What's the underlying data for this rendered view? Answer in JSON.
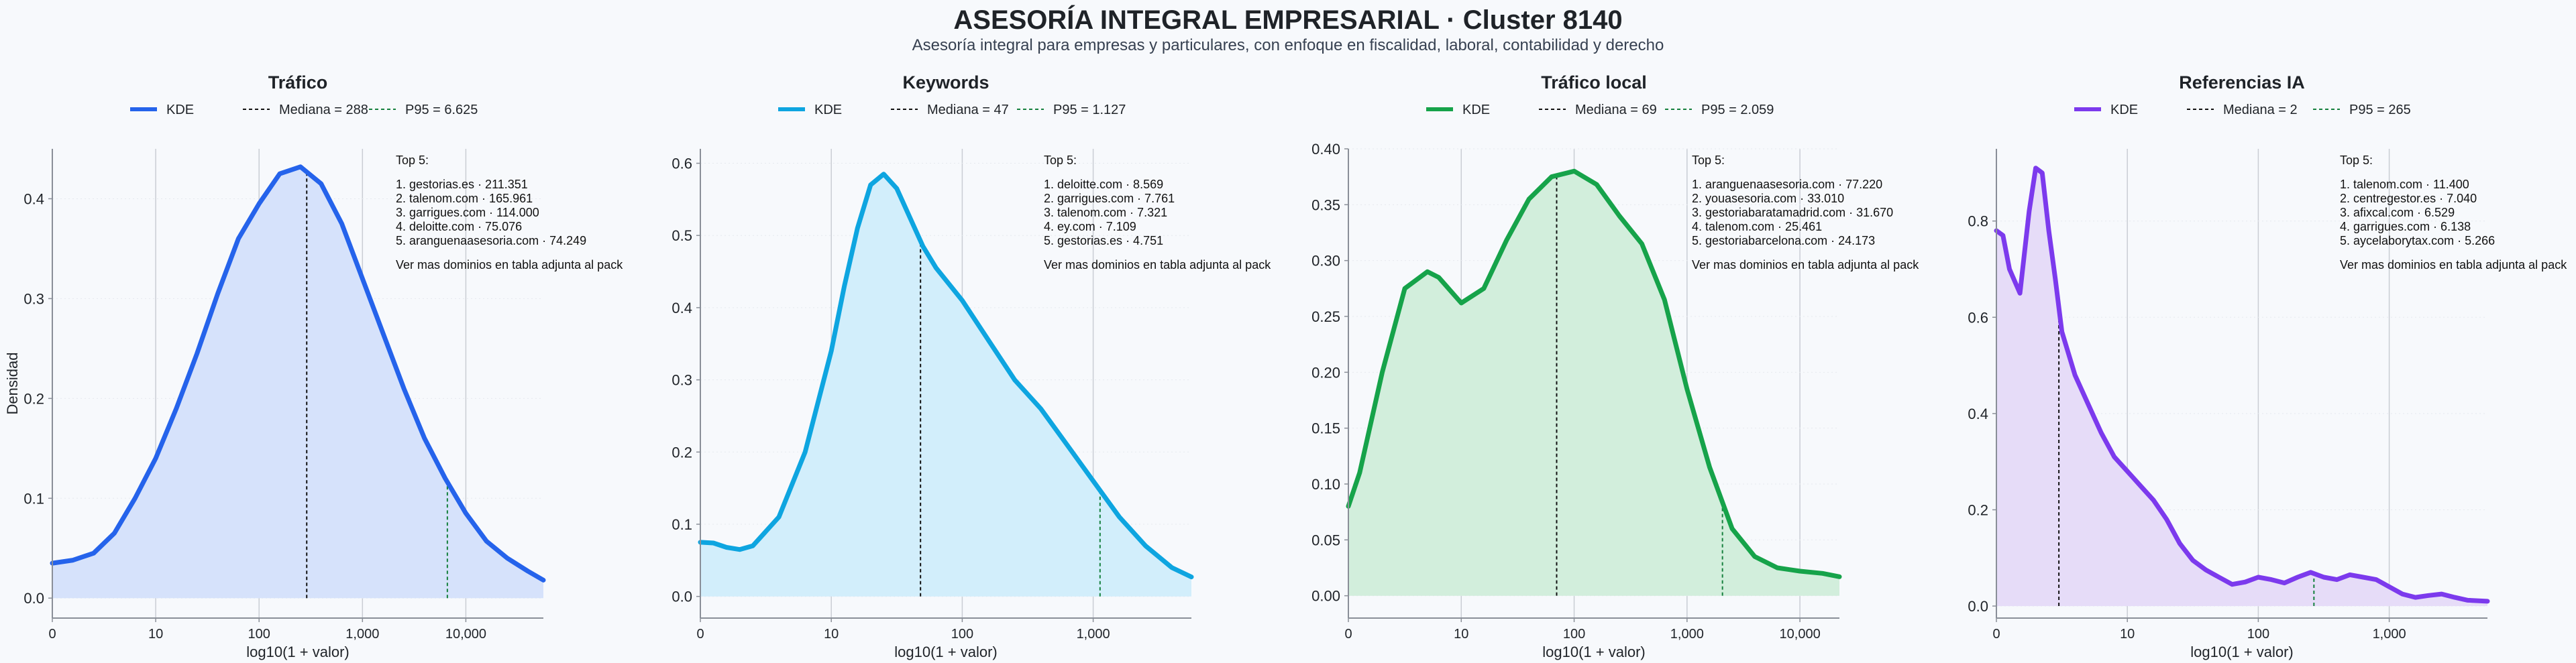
{
  "header": {
    "title": "ASESORÍA INTEGRAL EMPRESARIAL · Cluster 8140",
    "subtitle": "Asesoría integral para empresas y particulares, con enfoque en fiscalidad, laboral, contabilidad y derecho"
  },
  "chart_data": [
    {
      "type": "area",
      "title": "Tráfico",
      "xlabel": "log10(1 + valor)",
      "ylabel": "Densidad",
      "xscale": "log10(1+x)",
      "xlim": [
        0,
        4.75
      ],
      "ylim": [
        -0.02,
        0.45
      ],
      "x_ticks": [
        0,
        1,
        2,
        3,
        4
      ],
      "x_tick_labels": [
        "0",
        "10",
        "100",
        "1,000",
        "10,000"
      ],
      "y_ticks": [
        0.0,
        0.1,
        0.2,
        0.3,
        0.4
      ],
      "y_tick_labels": [
        "0.0",
        "0.1",
        "0.2",
        "0.3",
        "0.4"
      ],
      "color": "#2563eb",
      "fill_color": "#d6e2fb",
      "legend": [
        "KDE",
        "Mediana = 288",
        "P95 = 6.625"
      ],
      "median": 288,
      "p95": 6625,
      "series": [
        {
          "name": "KDE",
          "x": [
            0,
            0.2,
            0.4,
            0.6,
            0.8,
            1.0,
            1.2,
            1.4,
            1.6,
            1.8,
            2.0,
            2.2,
            2.4,
            2.6,
            2.8,
            3.0,
            3.2,
            3.4,
            3.6,
            3.8,
            4.0,
            4.2,
            4.4,
            4.6,
            4.75
          ],
          "y": [
            0.035,
            0.038,
            0.045,
            0.065,
            0.1,
            0.14,
            0.19,
            0.245,
            0.305,
            0.36,
            0.395,
            0.425,
            0.432,
            0.415,
            0.375,
            0.32,
            0.265,
            0.21,
            0.16,
            0.12,
            0.085,
            0.057,
            0.04,
            0.027,
            0.018
          ]
        }
      ],
      "annotation": [
        "Top 5:",
        "",
        "1. gestorias.es · 211.351",
        "2. talenom.com · 165.961",
        "3. garrigues.com · 114.000",
        "4. deloitte.com · 75.076",
        "5. aranguenaasesoria.com · 74.249",
        "",
        "Ver mas dominios en tabla adjunta al pack"
      ],
      "grid": "x"
    },
    {
      "type": "area",
      "title": "Keywords",
      "xlabel": "log10(1 + valor)",
      "ylabel": "",
      "xscale": "log10(1+x)",
      "xlim": [
        0,
        3.75
      ],
      "ylim": [
        -0.03,
        0.62
      ],
      "x_ticks": [
        0,
        1,
        2,
        3
      ],
      "x_tick_labels": [
        "0",
        "10",
        "100",
        "1,000"
      ],
      "y_ticks": [
        0.0,
        0.1,
        0.2,
        0.3,
        0.4,
        0.5,
        0.6
      ],
      "y_tick_labels": [
        "0.0",
        "0.1",
        "0.2",
        "0.3",
        "0.4",
        "0.5",
        "0.6"
      ],
      "color": "#0ea5e0",
      "fill_color": "#d2eefb",
      "legend": [
        "KDE",
        "Mediana = 47",
        "P95 = 1.127"
      ],
      "median": 47,
      "p95": 1127,
      "series": [
        {
          "name": "KDE",
          "x": [
            0,
            0.1,
            0.2,
            0.3,
            0.4,
            0.6,
            0.8,
            1.0,
            1.1,
            1.2,
            1.3,
            1.4,
            1.5,
            1.6,
            1.7,
            1.8,
            2.0,
            2.2,
            2.4,
            2.6,
            2.8,
            3.0,
            3.2,
            3.4,
            3.6,
            3.75
          ],
          "y": [
            0.075,
            0.074,
            0.068,
            0.065,
            0.07,
            0.11,
            0.2,
            0.34,
            0.43,
            0.51,
            0.57,
            0.585,
            0.565,
            0.525,
            0.485,
            0.455,
            0.41,
            0.355,
            0.3,
            0.26,
            0.21,
            0.16,
            0.11,
            0.07,
            0.04,
            0.027
          ]
        }
      ],
      "annotation": [
        "Top 5:",
        "",
        "1. deloitte.com · 8.569",
        "2. garrigues.com · 7.761",
        "3. talenom.com · 7.321",
        "4. ey.com · 7.109",
        "5. gestorias.es · 4.751",
        "",
        "Ver mas dominios en tabla adjunta al pack"
      ],
      "grid": "x"
    },
    {
      "type": "area",
      "title": "Tráfico local",
      "xlabel": "log10(1 + valor)",
      "ylabel": "",
      "xscale": "log10(1+x)",
      "xlim": [
        0,
        4.35
      ],
      "ylim": [
        -0.02,
        0.4
      ],
      "x_ticks": [
        0,
        1,
        2,
        3,
        4
      ],
      "x_tick_labels": [
        "0",
        "10",
        "100",
        "1,000",
        "10,000"
      ],
      "y_ticks": [
        0.0,
        0.05,
        0.1,
        0.15,
        0.2,
        0.25,
        0.3,
        0.35,
        0.4
      ],
      "y_tick_labels": [
        "0.00",
        "0.05",
        "0.10",
        "0.15",
        "0.20",
        "0.25",
        "0.30",
        "0.35",
        "0.40"
      ],
      "color": "#16a34a",
      "fill_color": "#d2eedc",
      "legend": [
        "KDE",
        "Mediana = 69",
        "P95 = 2.059"
      ],
      "median": 69,
      "p95": 2059,
      "series": [
        {
          "name": "KDE",
          "x": [
            0,
            0.1,
            0.3,
            0.5,
            0.7,
            0.8,
            1.0,
            1.2,
            1.4,
            1.6,
            1.8,
            2.0,
            2.2,
            2.4,
            2.6,
            2.8,
            3.0,
            3.2,
            3.4,
            3.6,
            3.8,
            4.0,
            4.2,
            4.35
          ],
          "y": [
            0.08,
            0.11,
            0.2,
            0.275,
            0.29,
            0.285,
            0.262,
            0.275,
            0.318,
            0.355,
            0.375,
            0.38,
            0.368,
            0.34,
            0.315,
            0.265,
            0.185,
            0.115,
            0.06,
            0.035,
            0.025,
            0.022,
            0.02,
            0.017
          ]
        }
      ],
      "annotation": [
        "Top 5:",
        "",
        "1. aranguenaasesoria.com · 77.220",
        "2. youasesoria.com · 33.010",
        "3. gestoriabaratamadrid.com · 31.670",
        "4. talenom.com · 25.461",
        "5. gestoriabarcelona.com · 24.173",
        "",
        "Ver mas dominios en tabla adjunta al pack"
      ],
      "grid": "x"
    },
    {
      "type": "area",
      "title": "Referencias IA",
      "xlabel": "log10(1 + valor)",
      "ylabel": "",
      "xscale": "log10(1+x)",
      "xlim": [
        0,
        3.75
      ],
      "ylim": [
        -0.025,
        0.95
      ],
      "x_ticks": [
        0,
        1,
        2,
        3
      ],
      "x_tick_labels": [
        "0",
        "10",
        "100",
        "1,000"
      ],
      "y_ticks": [
        0.0,
        0.2,
        0.4,
        0.6,
        0.8
      ],
      "y_tick_labels": [
        "0.0",
        "0.2",
        "0.4",
        "0.6",
        "0.8"
      ],
      "color": "#7c3aed",
      "fill_color": "#e6dcf8",
      "legend": [
        "KDE",
        "Mediana = 2",
        "P95 = 265"
      ],
      "median": 2,
      "p95": 265,
      "series": [
        {
          "name": "KDE",
          "x": [
            0,
            0.05,
            0.1,
            0.18,
            0.25,
            0.3,
            0.35,
            0.4,
            0.45,
            0.5,
            0.6,
            0.7,
            0.8,
            0.9,
            1.0,
            1.1,
            1.2,
            1.3,
            1.4,
            1.5,
            1.6,
            1.7,
            1.8,
            1.9,
            2.0,
            2.1,
            2.2,
            2.3,
            2.4,
            2.5,
            2.6,
            2.7,
            2.8,
            2.9,
            3.0,
            3.1,
            3.2,
            3.3,
            3.4,
            3.5,
            3.6,
            3.75
          ],
          "y": [
            0.78,
            0.77,
            0.7,
            0.65,
            0.82,
            0.91,
            0.9,
            0.78,
            0.68,
            0.57,
            0.48,
            0.42,
            0.36,
            0.31,
            0.28,
            0.25,
            0.22,
            0.18,
            0.13,
            0.095,
            0.075,
            0.06,
            0.045,
            0.05,
            0.06,
            0.055,
            0.048,
            0.06,
            0.07,
            0.06,
            0.055,
            0.065,
            0.06,
            0.055,
            0.04,
            0.025,
            0.018,
            0.022,
            0.025,
            0.018,
            0.012,
            0.01
          ]
        }
      ],
      "annotation": [
        "Top 5:",
        "",
        "1. talenom.com · 11.400",
        "2. centregestor.es · 7.040",
        "3. afixcal.com · 6.529",
        "4. garrigues.com · 6.138",
        "5. aycelaborytax.com · 5.266",
        "",
        "Ver mas dominios en tabla adjunta al pack"
      ],
      "grid": "x"
    }
  ]
}
